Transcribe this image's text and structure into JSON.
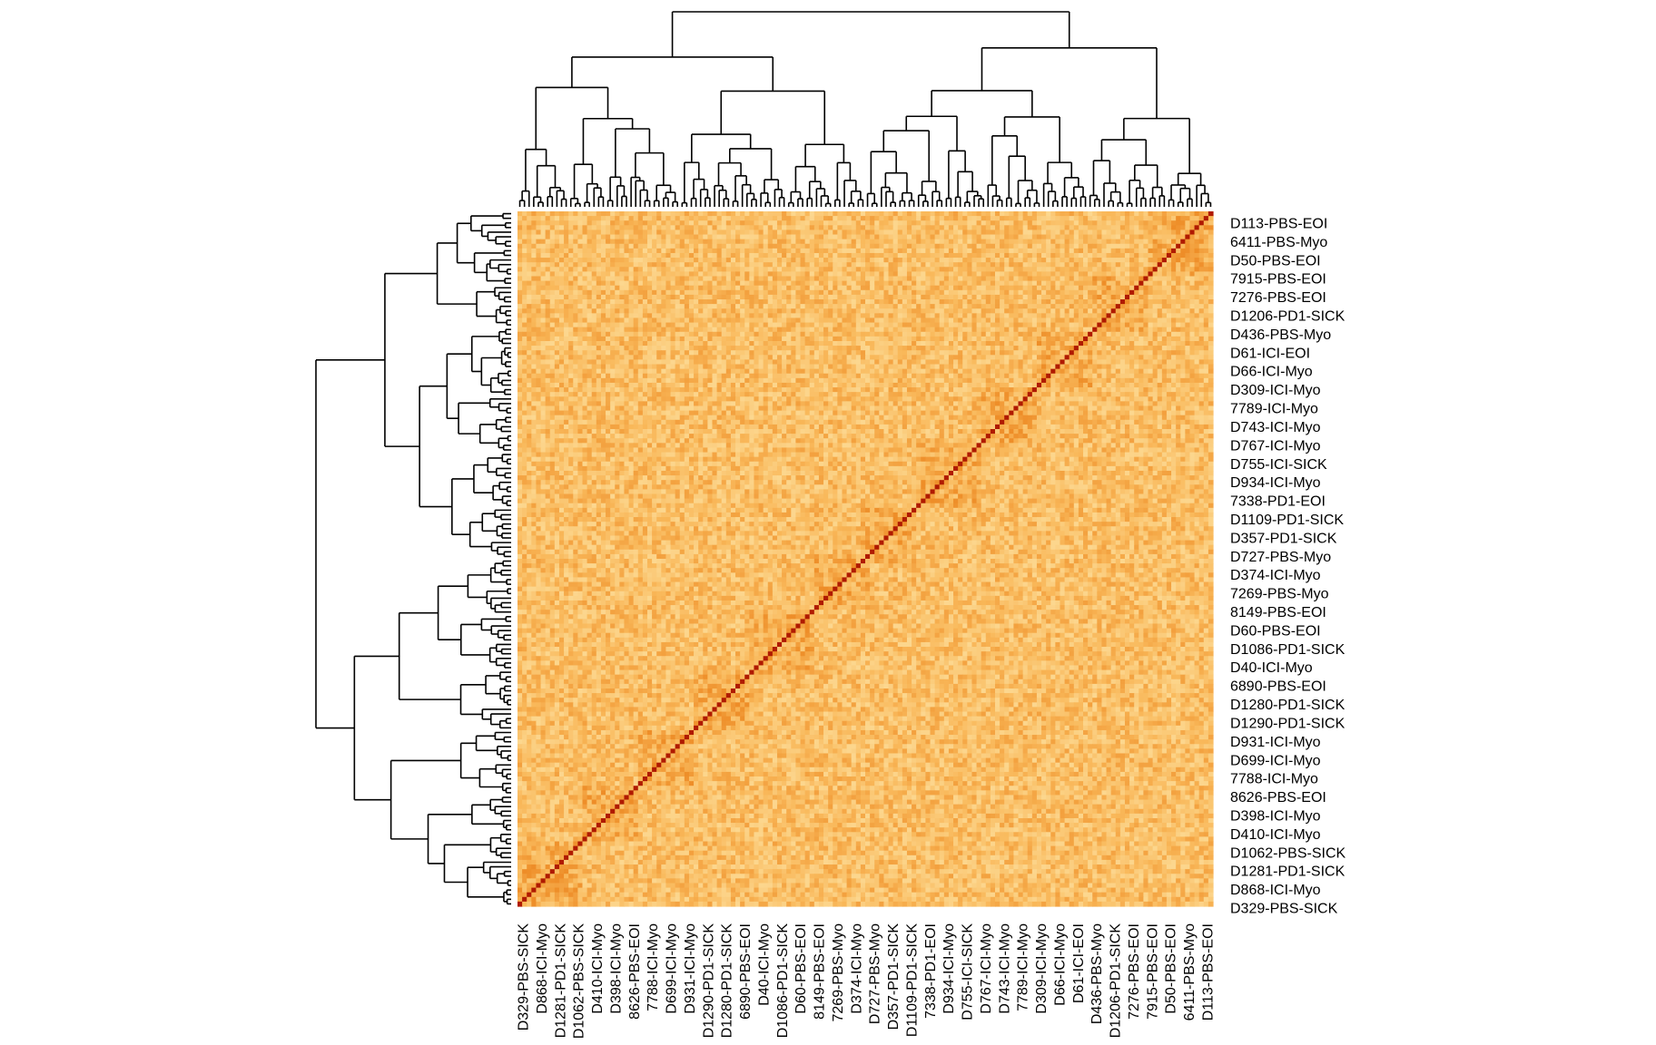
{
  "chart_data": {
    "type": "heatmap",
    "title": "",
    "xlabel": "",
    "ylabel": "",
    "labels_bottom_to_top": [
      "D329-PBS-SICK",
      "D868-ICI-Myo",
      "D1281-PD1-SICK",
      "D1062-PBS-SICK",
      "D410-ICI-Myo",
      "D398-ICI-Myo",
      "8626-PBS-EOI",
      "7788-ICI-Myo",
      "D699-ICI-Myo",
      "D931-ICI-Myo",
      "D1290-PD1-SICK",
      "D1280-PD1-SICK",
      "6890-PBS-EOI",
      "D40-ICI-Myo",
      "D1086-PD1-SICK",
      "D60-PBS-EOI",
      "8149-PBS-EOI",
      "7269-PBS-Myo",
      "D374-ICI-Myo",
      "D727-PBS-Myo",
      "D357-PD1-SICK",
      "D1109-PD1-SICK",
      "7338-PD1-EOI",
      "D934-ICI-Myo",
      "D755-ICI-SICK",
      "D767-ICI-Myo",
      "D743-ICI-Myo",
      "7789-ICI-Myo",
      "D309-ICI-Myo",
      "D66-ICI-Myo",
      "D61-ICI-EOI",
      "D436-PBS-Myo",
      "D1206-PD1-SICK",
      "7276-PBS-EOI",
      "7915-PBS-EOI",
      "D50-PBS-EOI",
      "6411-PBS-Myo",
      "D113-PBS-EOI"
    ],
    "n_cells_per_axis": 150,
    "symmetric": true,
    "diagonal": "max",
    "colors": {
      "low": "#FFF6C4",
      "mid": "#F9B85A",
      "high": "#E8780F",
      "diagonal": "#B01A00"
    },
    "legend": "none",
    "dendrograms": [
      "top",
      "left"
    ]
  }
}
